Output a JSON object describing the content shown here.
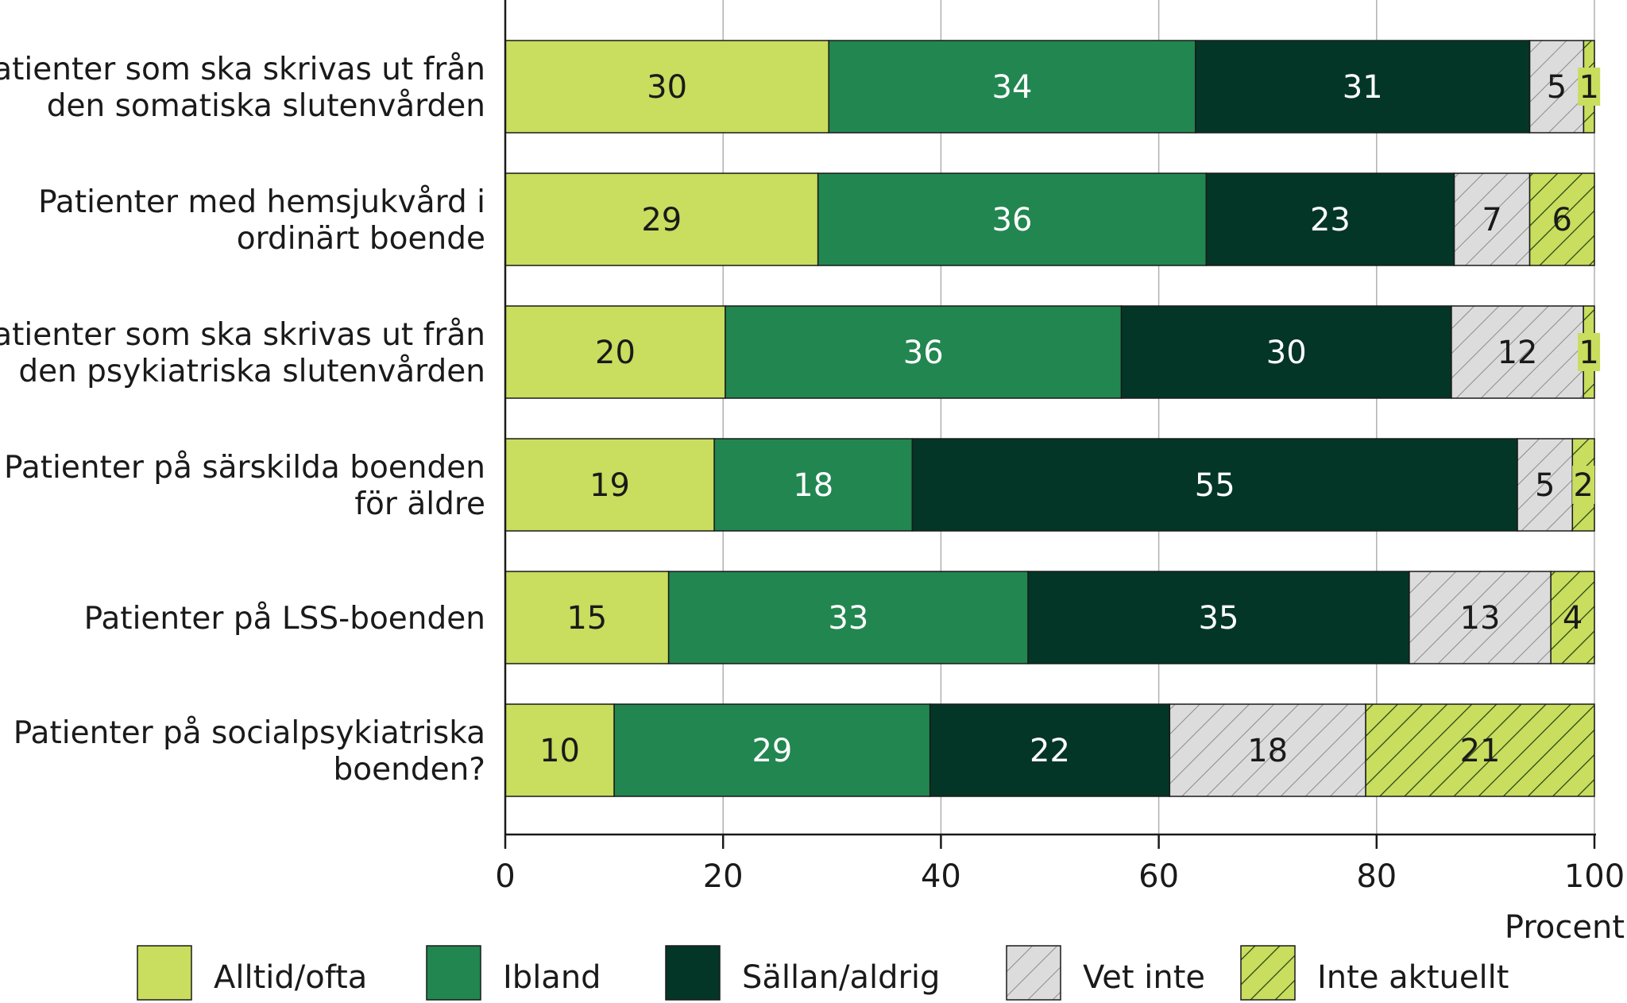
{
  "chart_data": {
    "type": "bar",
    "orientation": "horizontal",
    "stacked": true,
    "categories": [
      [
        "Patienter som ska skrivas ut från",
        "den somatiska slutenvården"
      ],
      [
        "Patienter med hemsjukvård i",
        "ordinärt boende"
      ],
      [
        "Patienter som ska skrivas ut från",
        "den psykiatriska slutenvården"
      ],
      [
        "Patienter på särskilda boenden",
        "för äldre"
      ],
      [
        "Patienter på LSS-boenden"
      ],
      [
        "Patienter på socialpsykiatriska",
        "boenden?"
      ]
    ],
    "series": [
      {
        "name": "Alltid/ofta",
        "values": [
          30,
          29,
          20,
          19,
          15,
          10
        ]
      },
      {
        "name": "Ibland",
        "values": [
          34,
          36,
          36,
          18,
          33,
          29
        ]
      },
      {
        "name": "Sällan/aldrig",
        "values": [
          31,
          23,
          30,
          55,
          35,
          22
        ]
      },
      {
        "name": "Vet inte",
        "values": [
          5,
          7,
          12,
          5,
          13,
          18
        ]
      },
      {
        "name": "Inte aktuellt",
        "values": [
          1,
          6,
          1,
          2,
          4,
          21
        ]
      }
    ],
    "xlabel": "Procent",
    "ylabel": "",
    "xlim": [
      0,
      100
    ],
    "xticks": [
      0,
      20,
      40,
      60,
      80,
      100
    ],
    "grid": true,
    "legend_position": "bottom"
  },
  "colors": {
    "alltid": "#c9dd5e",
    "ibland": "#228650",
    "sallan": "#033627",
    "vetinte_bg": "#dcdcdc",
    "vetinte_hatch": "#8c8c8c",
    "inteaktuellt_bg": "#c9dd5e",
    "inteaktuellt_hatch": "#1f3d12",
    "label_dark": "#1a1a1a",
    "label_light": "#ffffff",
    "axis": "#1a1a1a",
    "grid": "#b0b0b0"
  }
}
